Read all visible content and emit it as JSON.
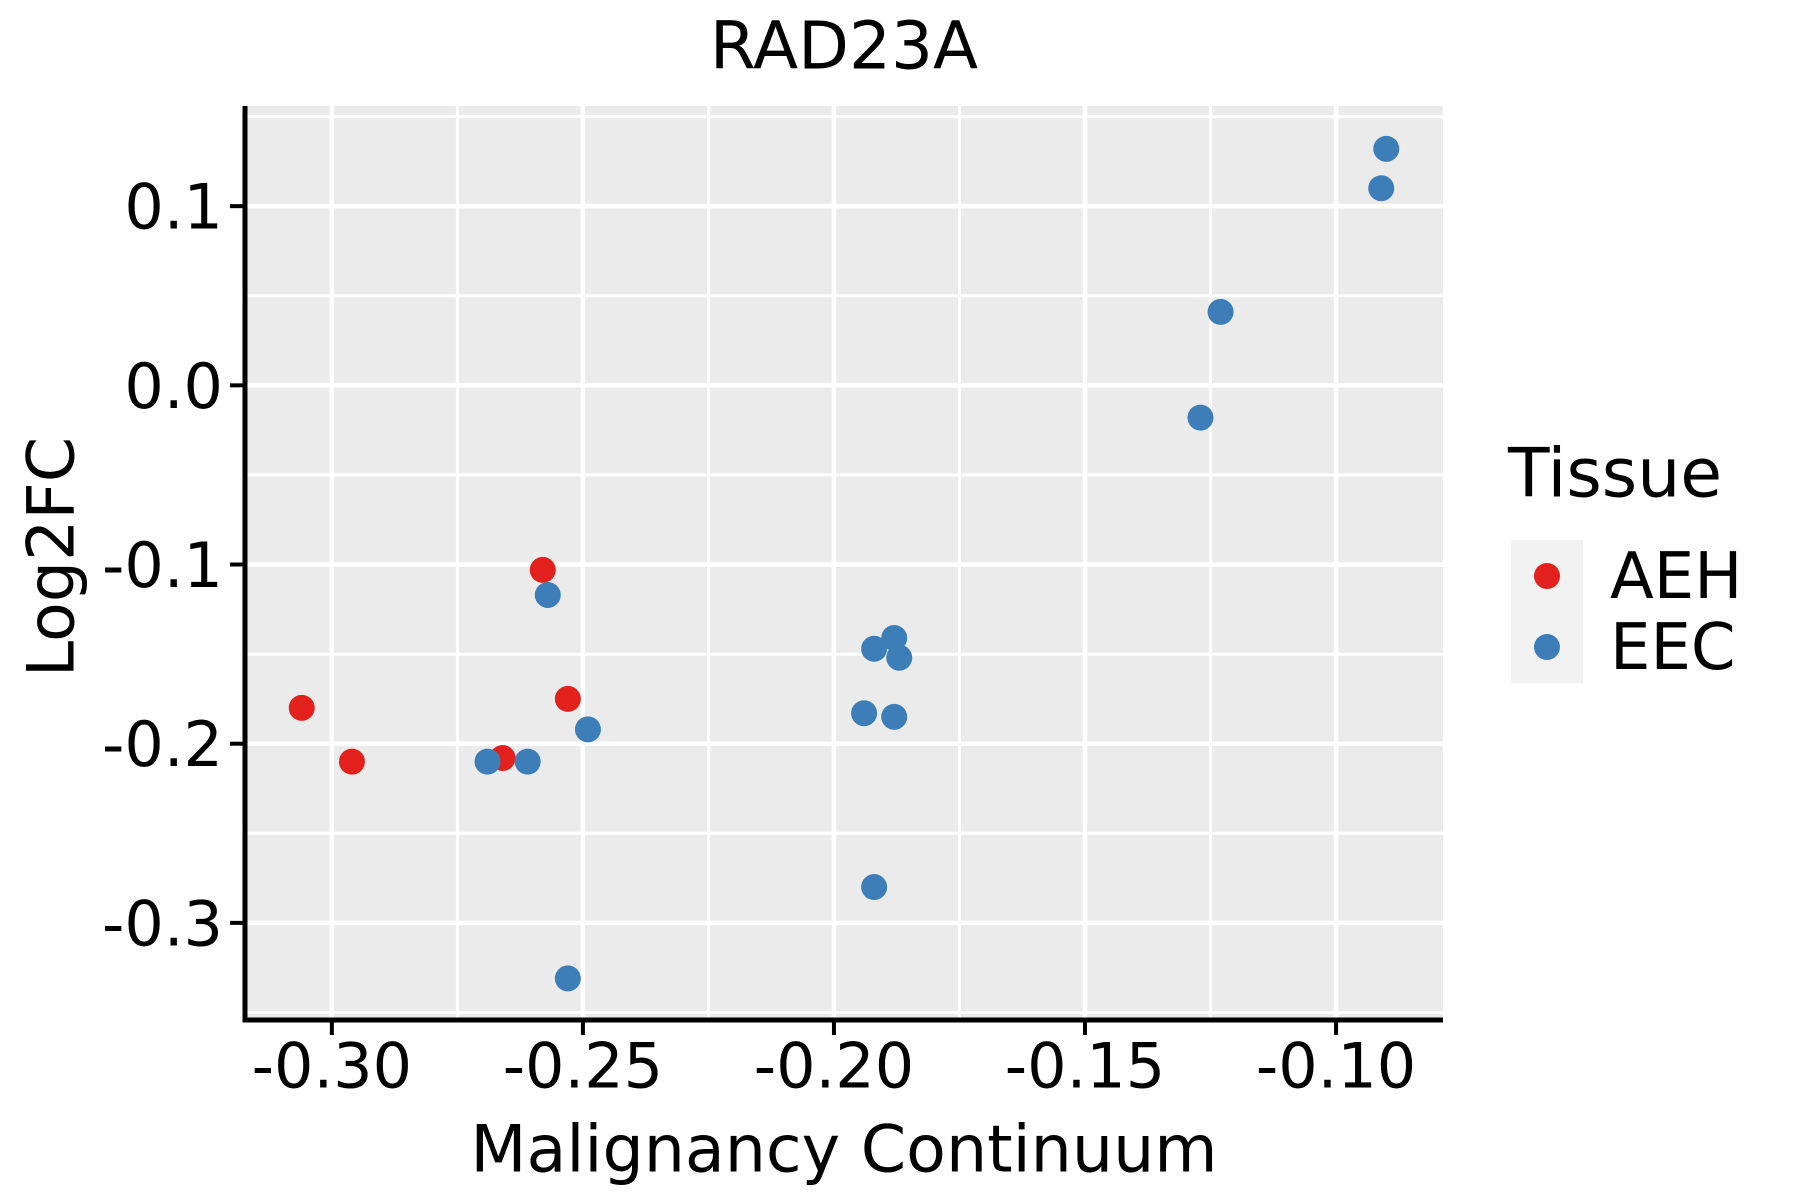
{
  "figure": {
    "title": "RAD23A"
  },
  "legend": {
    "title": "Tissue"
  },
  "chart_data": {
    "type": "scatter",
    "title": "RAD23A",
    "xlabel": "Malignancy Continuum",
    "ylabel": "Log2FC",
    "xlim": [
      -0.3173,
      -0.0787
    ],
    "ylim": [
      -0.3542,
      0.1559
    ],
    "grid": "white major and minor gridlines on gray panel",
    "panel_color": "#EBEBEB",
    "gridline_color": "#FFFFFF",
    "legend_position": "right",
    "legend_key_color": "#F2F2F2",
    "point_radius_px": 13,
    "x_ticks": [
      {
        "value": -0.3,
        "label": "-0.30"
      },
      {
        "value": -0.25,
        "label": "-0.25"
      },
      {
        "value": -0.2,
        "label": "-0.20"
      },
      {
        "value": -0.15,
        "label": "-0.15"
      },
      {
        "value": -0.1,
        "label": "-0.10"
      }
    ],
    "y_ticks": [
      {
        "value": 0.1,
        "label": "0.1"
      },
      {
        "value": 0.0,
        "label": "0.0"
      },
      {
        "value": -0.1,
        "label": "-0.1"
      },
      {
        "value": -0.2,
        "label": "-0.2"
      },
      {
        "value": -0.3,
        "label": "-0.3"
      }
    ],
    "x_minor": [
      -0.275,
      -0.225,
      -0.175,
      -0.125
    ],
    "y_minor": [
      0.15,
      0.05,
      -0.05,
      -0.15,
      -0.25,
      -0.35
    ],
    "series": [
      {
        "name": "AEH",
        "color": "#e2211c",
        "points": [
          [
            -0.306,
            -0.18
          ],
          [
            -0.296,
            -0.21
          ],
          [
            -0.266,
            -0.208
          ],
          [
            -0.258,
            -0.103
          ],
          [
            -0.253,
            -0.175
          ]
        ]
      },
      {
        "name": "EEC",
        "color": "#3d7eb8",
        "points": [
          [
            -0.269,
            -0.21
          ],
          [
            -0.261,
            -0.21
          ],
          [
            -0.257,
            -0.117
          ],
          [
            -0.249,
            -0.192
          ],
          [
            -0.253,
            -0.331
          ],
          [
            -0.194,
            -0.183
          ],
          [
            -0.192,
            -0.147
          ],
          [
            -0.192,
            -0.28
          ],
          [
            -0.188,
            -0.141
          ],
          [
            -0.188,
            -0.185
          ],
          [
            -0.187,
            -0.152
          ],
          [
            -0.123,
            0.041
          ],
          [
            -0.127,
            -0.018
          ],
          [
            -0.09,
            0.132
          ],
          [
            -0.091,
            0.11
          ]
        ]
      }
    ]
  }
}
